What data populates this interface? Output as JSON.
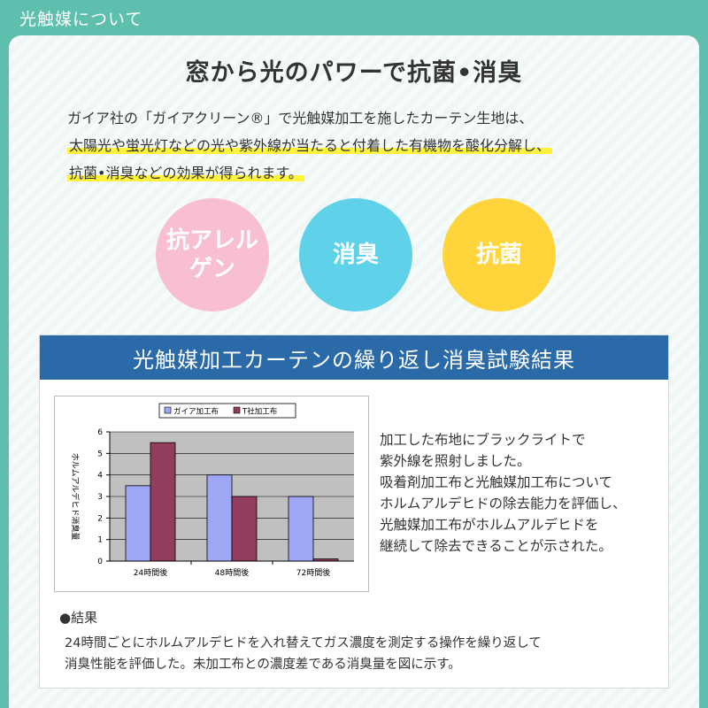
{
  "header": {
    "tab_label": "光触媒について"
  },
  "headline": "窓から光のパワーで抗菌•消臭",
  "intro": {
    "line1": "ガイア社の「ガイアクリーン®」で光触媒加工を施したカーテン生地は、",
    "line2": "太陽光や蛍光灯などの光や紫外線が当たると付着した有機物を酸化分解し、",
    "line3": "抗菌•消臭などの効果が得られます。"
  },
  "features": [
    {
      "label_line1": "抗アレル",
      "label_line2": "ゲン",
      "color": "#f7bfd0"
    },
    {
      "label_line1": "消臭",
      "label_line2": "",
      "color": "#5fd2ea"
    },
    {
      "label_line1": "抗菌",
      "label_line2": "",
      "color": "#ffd53b"
    }
  ],
  "panel": {
    "title": "光触媒加工カーテンの繰り返し消臭試験結果",
    "description": {
      "line1": "加工した布地にブラックライトで",
      "line2": "紫外線を照射しました。",
      "line3": "吸着剤加工布と光触媒加工布について",
      "line4": "ホルムアルデヒドの除去能力を評価し、",
      "line5": "光触媒加工布がホルムアルデヒドを",
      "line6": "継続して除去できることが示された。"
    },
    "result_label": "●結果",
    "result_text": {
      "line1": "24時間ごとにホルムアルデヒドを入れ替えてガス濃度を測定する操作を繰り返して",
      "line2": "消臭性能を評価した。未加工布との濃度差である消臭量を図に示す。"
    }
  },
  "chart_data": {
    "type": "bar",
    "categories": [
      "24時間後",
      "48時間後",
      "72時間後"
    ],
    "series": [
      {
        "name": "ガイア加工布",
        "values": [
          3.5,
          4.0,
          3.0
        ],
        "color": "#9ea6f5"
      },
      {
        "name": "T社加工布",
        "values": [
          5.5,
          3.0,
          0.1
        ],
        "color": "#923c5e"
      }
    ],
    "ylabel": "ホルムアルデヒド消臭量",
    "ylim": [
      0,
      6
    ],
    "yticks": [
      0,
      1,
      2,
      3,
      4,
      5,
      6
    ],
    "grid": true,
    "legend": "top"
  }
}
